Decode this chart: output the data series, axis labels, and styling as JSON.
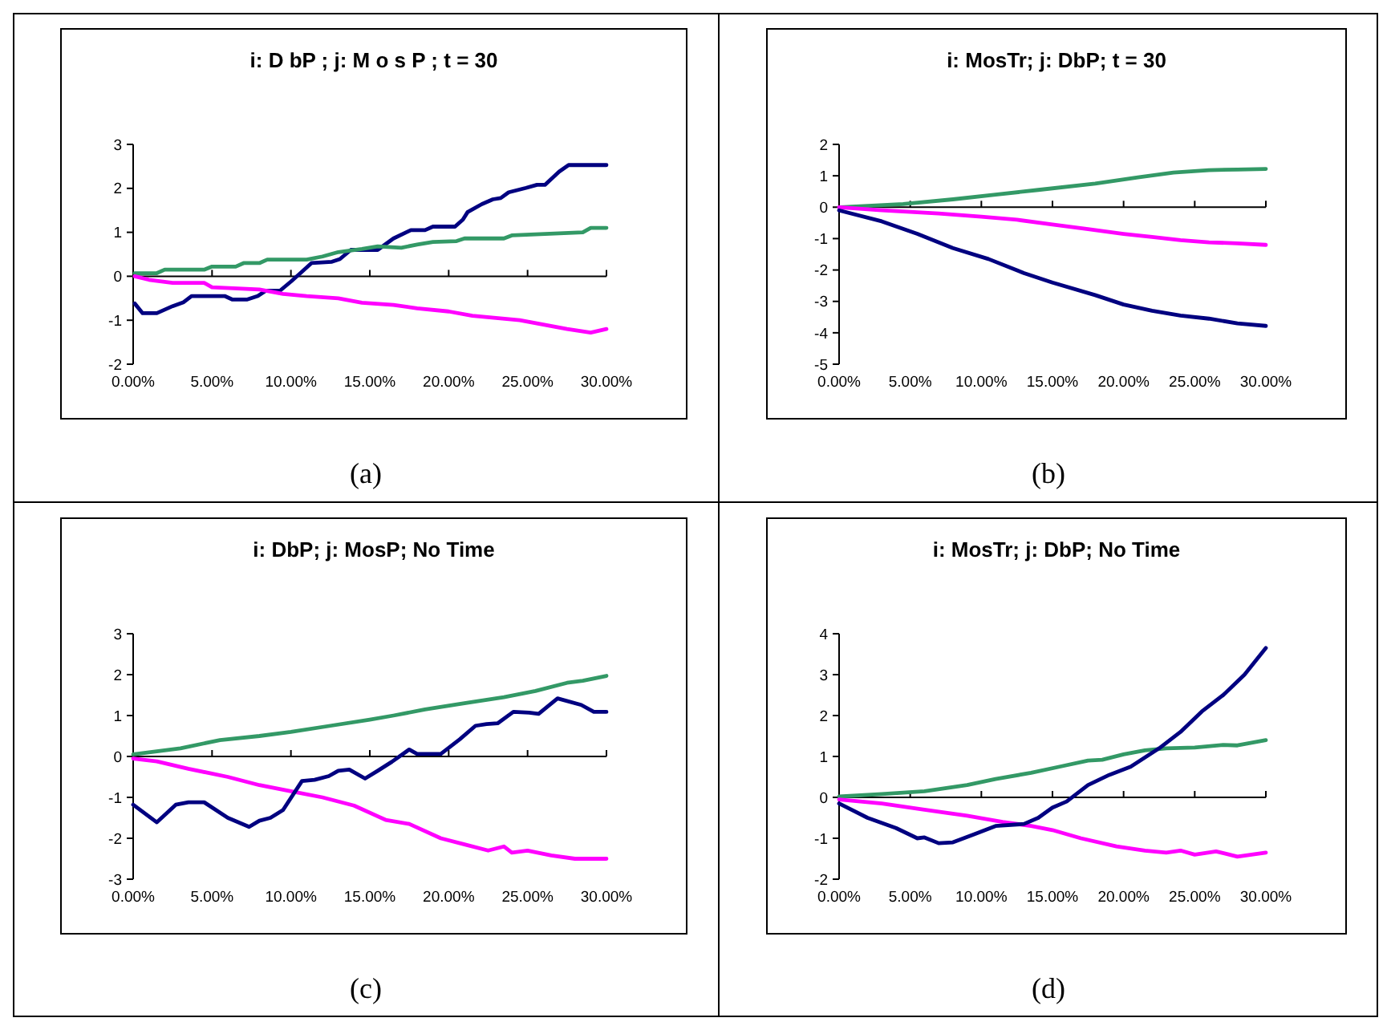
{
  "chart_data": [
    {
      "type": "line",
      "title": "i: D bP ; j: M o s P ; t = 30",
      "annotations": [
        "(a)"
      ],
      "xlim": [
        0,
        30
      ],
      "xticks": [
        {
          "value": 0,
          "label": "0.00%"
        },
        {
          "value": 5,
          "label": "5.00%"
        },
        {
          "value": 10,
          "label": "10.00%"
        },
        {
          "value": 15,
          "label": "15.00%"
        },
        {
          "value": 20,
          "label": "20.00%"
        },
        {
          "value": 25,
          "label": "25.00%"
        },
        {
          "value": 30,
          "label": "30.00%"
        }
      ],
      "ylim": [
        -2,
        3
      ],
      "yticks": [
        -2,
        -1,
        0,
        1,
        2,
        3
      ],
      "series": [
        {
          "color": "#000080",
          "x": [
            0.1,
            0.6,
            1.5,
            2.5,
            3.2,
            3.7,
            5.8,
            6.3,
            7.2,
            7.9,
            8.4,
            9.3,
            10.0,
            10.6,
            11.3,
            12.6,
            13.1,
            13.8,
            15.5,
            16.5,
            17.6,
            18.5,
            19.0,
            20.4,
            20.9,
            21.2,
            22.1,
            22.8,
            23.3,
            23.8,
            24.9,
            25.6,
            26.1,
            27.0,
            27.6,
            30.0
          ],
          "values": [
            -0.62,
            -0.84,
            -0.84,
            -0.68,
            -0.59,
            -0.45,
            -0.45,
            -0.53,
            -0.53,
            -0.45,
            -0.33,
            -0.33,
            -0.12,
            0.07,
            0.3,
            0.33,
            0.39,
            0.6,
            0.6,
            0.86,
            1.05,
            1.05,
            1.13,
            1.13,
            1.29,
            1.46,
            1.64,
            1.75,
            1.78,
            1.91,
            2.01,
            2.08,
            2.08,
            2.38,
            2.53,
            2.53
          ]
        },
        {
          "color": "#339966",
          "x": [
            0.1,
            1.5,
            2.0,
            4.5,
            5.0,
            6.5,
            7.0,
            8.0,
            8.5,
            11.0,
            12.0,
            13.0,
            14.5,
            15.5,
            17.0,
            18.0,
            19.0,
            20.5,
            21.0,
            23.5,
            24.0,
            28.5,
            29.0,
            30.0
          ],
          "values": [
            0.07,
            0.07,
            0.15,
            0.15,
            0.22,
            0.22,
            0.3,
            0.3,
            0.38,
            0.38,
            0.45,
            0.55,
            0.62,
            0.68,
            0.65,
            0.72,
            0.78,
            0.8,
            0.86,
            0.86,
            0.93,
            1.0,
            1.1,
            1.1
          ]
        },
        {
          "color": "#ff00ff",
          "x": [
            0.1,
            1.0,
            2.5,
            4.5,
            5.0,
            8.0,
            9.5,
            11.0,
            13.0,
            14.5,
            16.5,
            18.0,
            20.0,
            21.5,
            23.0,
            24.5,
            26.0,
            27.5,
            29.0,
            30.0
          ],
          "values": [
            0,
            -0.08,
            -0.15,
            -0.15,
            -0.25,
            -0.3,
            -0.4,
            -0.45,
            -0.5,
            -0.6,
            -0.65,
            -0.73,
            -0.8,
            -0.9,
            -0.95,
            -1.0,
            -1.1,
            -1.2,
            -1.28,
            -1.2
          ]
        }
      ]
    },
    {
      "type": "line",
      "title": "i: MosTr; j: DbP; t = 30",
      "annotations": [
        "(b)"
      ],
      "xlim": [
        0,
        30
      ],
      "xticks": [
        {
          "value": 0,
          "label": "0.00%"
        },
        {
          "value": 5,
          "label": "5.00%"
        },
        {
          "value": 10,
          "label": "10.00%"
        },
        {
          "value": 15,
          "label": "15.00%"
        },
        {
          "value": 20,
          "label": "20.00%"
        },
        {
          "value": 25,
          "label": "25.00%"
        },
        {
          "value": 30,
          "label": "30.00%"
        }
      ],
      "ylim": [
        -5,
        2
      ],
      "yticks": [
        -5,
        -4,
        -3,
        -2,
        -1,
        0,
        1,
        2
      ],
      "series": [
        {
          "color": "#339966",
          "x": [
            0.1,
            4.5,
            8,
            11,
            14,
            18,
            21,
            23.5,
            26,
            28,
            30
          ],
          "values": [
            0,
            0.1,
            0.25,
            0.4,
            0.55,
            0.75,
            0.95,
            1.1,
            1.18,
            1.2,
            1.22
          ]
        },
        {
          "color": "#ff00ff",
          "x": [
            0,
            3,
            7,
            10,
            12.5,
            15,
            17.5,
            20,
            22,
            24,
            26,
            28,
            30
          ],
          "values": [
            0,
            -0.1,
            -0.2,
            -0.3,
            -0.4,
            -0.55,
            -0.7,
            -0.85,
            -0.95,
            -1.05,
            -1.12,
            -1.15,
            -1.2
          ]
        },
        {
          "color": "#000080",
          "x": [
            0,
            3,
            5.5,
            8,
            10.5,
            13,
            15,
            18,
            20,
            22,
            24,
            26,
            28,
            30
          ],
          "values": [
            -0.1,
            -0.45,
            -0.85,
            -1.3,
            -1.65,
            -2.1,
            -2.4,
            -2.8,
            -3.1,
            -3.3,
            -3.45,
            -3.55,
            -3.7,
            -3.78
          ]
        }
      ]
    },
    {
      "type": "line",
      "title": "i: DbP; j: MosP; No Time",
      "annotations": [
        "(c)"
      ],
      "xlim": [
        0,
        30
      ],
      "xticks": [
        {
          "value": 0,
          "label": "0.00%"
        },
        {
          "value": 5,
          "label": "5.00%"
        },
        {
          "value": 10,
          "label": "10.00%"
        },
        {
          "value": 15,
          "label": "15.00%"
        },
        {
          "value": 20,
          "label": "20.00%"
        },
        {
          "value": 25,
          "label": "25.00%"
        },
        {
          "value": 30,
          "label": "30.00%"
        }
      ],
      "ylim": [
        -3,
        3
      ],
      "yticks": [
        -3,
        -2,
        -1,
        0,
        1,
        2,
        3
      ],
      "series": [
        {
          "color": "#339966",
          "x": [
            0,
            3,
            5.5,
            8,
            10,
            12.5,
            15,
            16.5,
            18.5,
            21,
            23.5,
            25.5,
            27.5,
            28.5,
            30
          ],
          "values": [
            0.05,
            0.2,
            0.4,
            0.5,
            0.6,
            0.75,
            0.9,
            1.0,
            1.15,
            1.3,
            1.45,
            1.6,
            1.8,
            1.85,
            1.97
          ]
        },
        {
          "color": "#ff00ff",
          "x": [
            0,
            1.5,
            3.5,
            6,
            8,
            10,
            12,
            14,
            16,
            17.5,
            19.5,
            21,
            22.5,
            23.5,
            24,
            25,
            26.5,
            28,
            30
          ],
          "values": [
            -0.05,
            -0.12,
            -0.3,
            -0.5,
            -0.7,
            -0.85,
            -1.0,
            -1.2,
            -1.55,
            -1.65,
            -2.0,
            -2.15,
            -2.3,
            -2.2,
            -2.35,
            -2.3,
            -2.42,
            -2.5,
            -2.5
          ]
        },
        {
          "color": "#000080",
          "x": [
            0,
            1.5,
            2.7,
            3.5,
            4.5,
            6.0,
            7.35,
            8.0,
            8.7,
            9.5,
            10.7,
            11.5,
            12.4,
            13.0,
            13.7,
            14.7,
            15.5,
            16.4,
            17.5,
            18.0,
            19.5,
            20.7,
            21.7,
            22.4,
            23.1,
            24.1,
            25.1,
            25.7,
            26.9,
            28.4,
            29.2,
            30.0
          ],
          "values": [
            -1.18,
            -1.61,
            -1.18,
            -1.12,
            -1.12,
            -1.5,
            -1.72,
            -1.57,
            -1.5,
            -1.31,
            -0.6,
            -0.57,
            -0.48,
            -0.35,
            -0.32,
            -0.54,
            -0.35,
            -0.13,
            0.17,
            0.06,
            0.06,
            0.42,
            0.75,
            0.79,
            0.81,
            1.09,
            1.07,
            1.04,
            1.42,
            1.26,
            1.09,
            1.09
          ]
        }
      ]
    },
    {
      "type": "line",
      "title": "i: MosTr; j: DbP; No Time",
      "annotations": [
        "(d)"
      ],
      "xlim": [
        0,
        30
      ],
      "xticks": [
        {
          "value": 0,
          "label": "0.00%"
        },
        {
          "value": 5,
          "label": "5.00%"
        },
        {
          "value": 10,
          "label": "10.00%"
        },
        {
          "value": 15,
          "label": "15.00%"
        },
        {
          "value": 20,
          "label": "20.00%"
        },
        {
          "value": 25,
          "label": "25.00%"
        },
        {
          "value": 30,
          "label": "30.00%"
        }
      ],
      "ylim": [
        -2,
        4
      ],
      "yticks": [
        -2,
        -1,
        0,
        1,
        2,
        3,
        4
      ],
      "series": [
        {
          "color": "#339966",
          "x": [
            0,
            3,
            6,
            9,
            11,
            13.5,
            15.5,
            17.5,
            18.5,
            20,
            21.5,
            23,
            25,
            27,
            28,
            30
          ],
          "values": [
            0.02,
            0.08,
            0.15,
            0.3,
            0.45,
            0.6,
            0.75,
            0.9,
            0.92,
            1.05,
            1.15,
            1.2,
            1.22,
            1.28,
            1.27,
            1.4
          ]
        },
        {
          "color": "#ff00ff",
          "x": [
            0,
            3,
            6,
            9,
            11.5,
            13.5,
            15,
            17,
            19.5,
            21.5,
            23,
            24,
            25,
            26.5,
            28,
            30
          ],
          "values": [
            -0.05,
            -0.15,
            -0.3,
            -0.45,
            -0.6,
            -0.7,
            -0.8,
            -1.0,
            -1.2,
            -1.3,
            -1.35,
            -1.3,
            -1.4,
            -1.32,
            -1.45,
            -1.35
          ]
        },
        {
          "color": "#000080",
          "x": [
            0,
            2,
            4,
            5.5,
            6,
            7,
            8,
            9.5,
            11,
            13,
            14,
            15,
            16,
            17.5,
            19,
            20.5,
            22.5,
            24,
            25.5,
            27,
            28.5,
            30
          ],
          "values": [
            -0.15,
            -0.5,
            -0.75,
            -1.0,
            -0.98,
            -1.12,
            -1.1,
            -0.9,
            -0.7,
            -0.65,
            -0.5,
            -0.25,
            -0.1,
            0.3,
            0.55,
            0.75,
            1.2,
            1.6,
            2.1,
            2.5,
            3.0,
            3.65
          ]
        }
      ]
    }
  ]
}
